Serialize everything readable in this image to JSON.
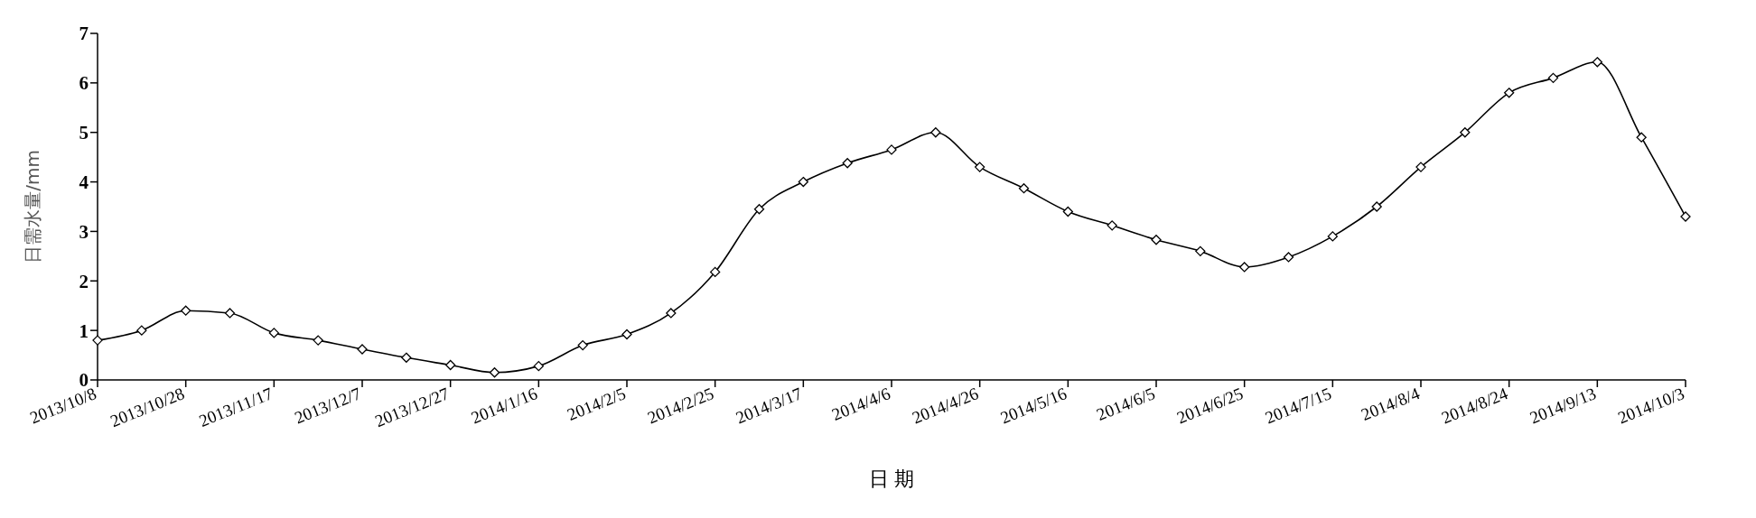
{
  "chart_data": {
    "type": "line",
    "xlabel": "日 期",
    "ylabel": "日需水量/mm",
    "categories": [
      "2013/10/8",
      null,
      "2013/10/28",
      null,
      "2013/11/17",
      null,
      "2013/12/7",
      null,
      "2013/12/27",
      null,
      "2014/1/16",
      null,
      "2014/2/5",
      null,
      "2014/2/25",
      null,
      "2014/3/17",
      null,
      "2014/4/6",
      null,
      "2014/4/26",
      null,
      "2014/5/16",
      null,
      "2014/6/5",
      null,
      "2014/6/25",
      null,
      "2014/7/15",
      null,
      "2014/8/4",
      null,
      "2014/8/24",
      null,
      "2014/9/13",
      null,
      "2014/10/3"
    ],
    "series": [
      {
        "color": "#000000",
        "values": [
          0.8,
          1.0,
          1.4,
          1.35,
          0.95,
          0.8,
          0.62,
          0.45,
          0.3,
          0.15,
          0.28,
          0.7,
          0.92,
          1.35,
          2.18,
          3.45,
          4.0,
          4.38,
          4.65,
          5.0,
          4.3,
          3.87,
          3.4,
          3.12,
          2.83,
          2.6,
          2.28,
          2.48,
          2.9,
          3.5,
          4.3,
          5.0,
          5.8,
          6.1,
          6.42,
          4.9,
          3.3
        ]
      }
    ],
    "ylim": [
      0,
      7
    ],
    "yticks": [
      0,
      1,
      2,
      3,
      4,
      5,
      6,
      7
    ],
    "grid": false,
    "legend": false,
    "marker": "diamond",
    "line_style": "solid"
  }
}
